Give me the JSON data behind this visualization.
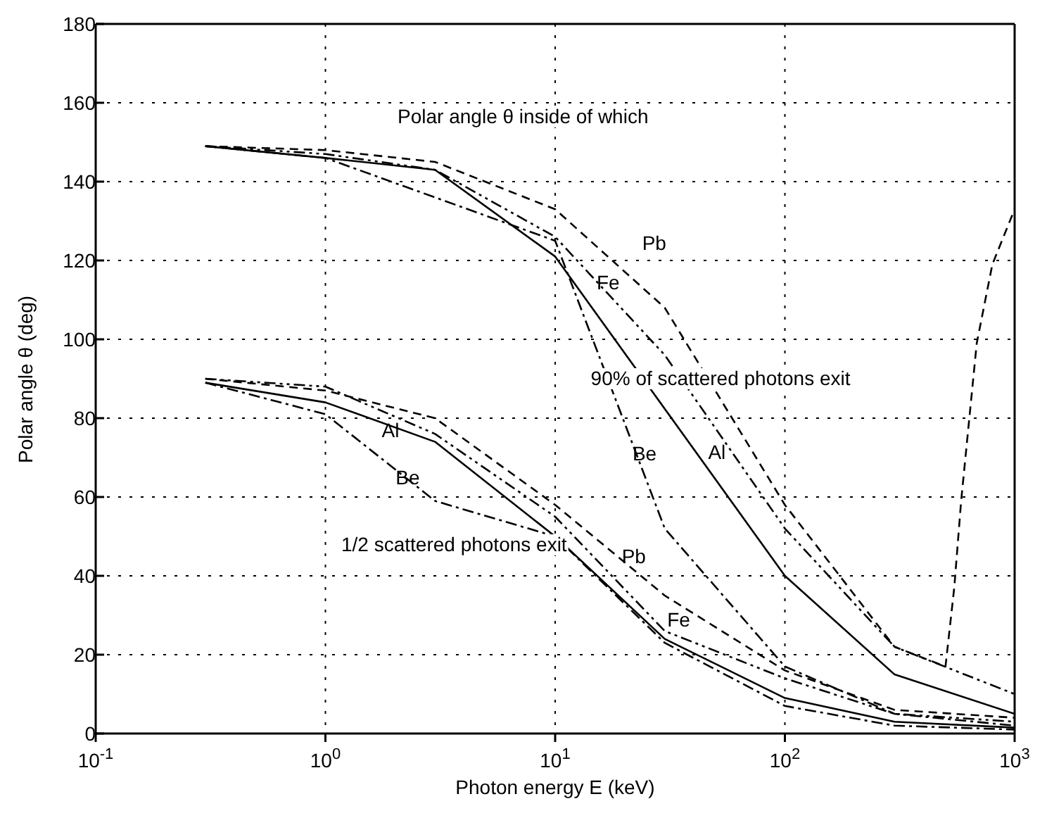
{
  "chart_data": {
    "type": "line",
    "xlabel": "Photon energy E (keV)",
    "ylabel": "Polar angle θ (deg)",
    "log": "x",
    "grid": true,
    "marker": "none",
    "xlim": [
      0.1,
      1000
    ],
    "xticks": [
      {
        "value": 0.1,
        "label": "10$^{-1}$"
      },
      {
        "value": 1,
        "label": "10$^{0}$"
      },
      {
        "value": 10,
        "label": "10$^{1}$"
      },
      {
        "value": 100,
        "label": "10$^{2}$"
      },
      {
        "value": 1000,
        "label": "10$^{3}$"
      }
    ],
    "ylim": [
      0,
      180
    ],
    "yticks": [
      0,
      20,
      40,
      60,
      80,
      100,
      120,
      140,
      160,
      180
    ],
    "series": [
      {
        "name": "Pb",
        "color": "#000000",
        "line_style": "dashed",
        "x": [
          0.3,
          1,
          3,
          10,
          30,
          100,
          300,
          500,
          546,
          585,
          684,
          800,
          1000
        ],
        "values": [
          149,
          148,
          145,
          133,
          108,
          58,
          22,
          17,
          37,
          59,
          99,
          119,
          133
        ]
      },
      {
        "name": "Fe",
        "color": "#000000",
        "line_style": "dashdotdot",
        "x": [
          0.3,
          1,
          3,
          10,
          30,
          100,
          300,
          1000
        ],
        "values": [
          149,
          147,
          143,
          126,
          96,
          52,
          22,
          10
        ]
      },
      {
        "name": "Be",
        "color": "#000000",
        "line_style": "dashdot",
        "x": [
          0.3,
          1,
          3,
          10,
          30,
          100,
          300,
          1000
        ],
        "values": [
          149,
          146,
          136,
          125,
          52,
          17,
          5,
          2
        ]
      },
      {
        "name": "Al",
        "color": "#000000",
        "line_style": "solid",
        "x": [
          0.3,
          1,
          3,
          10,
          100,
          300,
          1000
        ],
        "values": [
          149,
          146,
          143,
          121,
          40,
          15,
          5
        ]
      },
      {
        "name": "Pb",
        "color": "#000000",
        "line_style": "dashed",
        "x": [
          0.3,
          1,
          3,
          10,
          30,
          100,
          300,
          1000
        ],
        "values": [
          90,
          87,
          80,
          58,
          35,
          16,
          6,
          4
        ]
      },
      {
        "name": "Fe",
        "color": "#000000",
        "line_style": "dashdotdot",
        "x": [
          0.3,
          1,
          3,
          10,
          30,
          100,
          300,
          1000
        ],
        "values": [
          90,
          88,
          76,
          55,
          26,
          14,
          5,
          3
        ]
      },
      {
        "name": "Be",
        "color": "#000000",
        "line_style": "dashdot",
        "x": [
          0.3,
          1,
          3,
          10,
          30,
          100,
          300,
          1000
        ],
        "values": [
          89,
          81,
          59,
          50,
          23,
          7,
          2,
          1
        ]
      },
      {
        "name": "Al",
        "color": "#000000",
        "line_style": "solid",
        "x": [
          0.3,
          1,
          3,
          10,
          30,
          100,
          300,
          1000
        ],
        "values": [
          89,
          84,
          74,
          50,
          24,
          9,
          3,
          1.5
        ]
      }
    ],
    "annotations": [
      "Polar angle θ inside of which",
      "90% of scattered photons exit",
      "1/2 scattered photons exit"
    ]
  }
}
